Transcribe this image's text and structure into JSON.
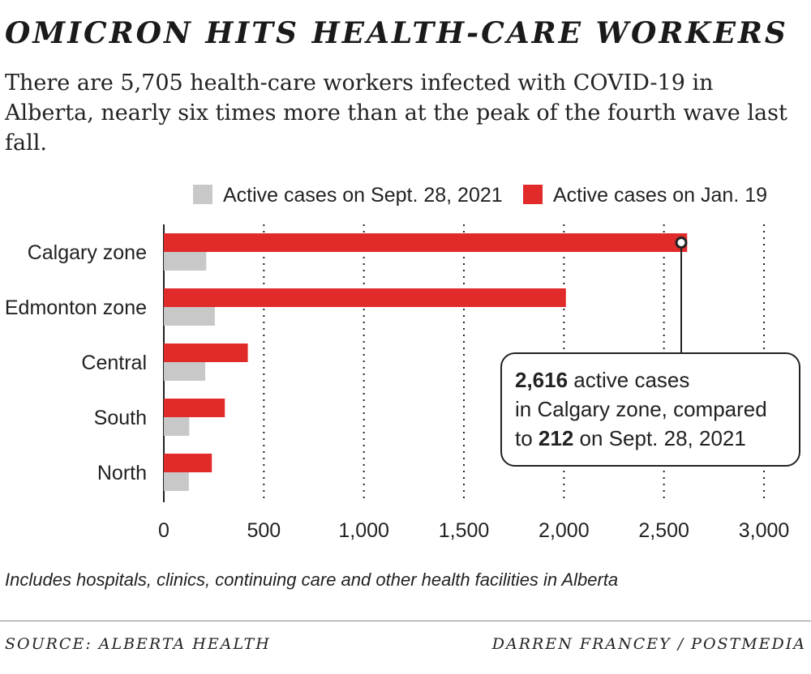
{
  "title": "OMICRON HITS HEALTH-CARE WORKERS",
  "subtitle": "There are 5,705 health-care workers infected with COVID-19 in Alberta, nearly six times more than at the peak of the fourth wave last fall.",
  "note": "Includes hospitals, clinics, continuing care and other health facilities in Alberta",
  "source": "SOURCE: ALBERTA HEALTH",
  "credit": "DARREN FRANCEY / POSTMEDIA",
  "colors": {
    "jan": "#e12b2b",
    "sept": "#c8c8c8",
    "axis": "#222222"
  },
  "callout": {
    "value": "2,616",
    "line1_rest": " active cases",
    "line2": "in Calgary zone, compared",
    "line3_pre": "to ",
    "value2": "212",
    "line3_post": " on Sept. 28, 2021"
  },
  "chart_data": {
    "type": "bar",
    "orientation": "horizontal",
    "categories": [
      "Calgary zone",
      "Edmonton zone",
      "Central",
      "South",
      "North"
    ],
    "series": [
      {
        "name": "Active cases on Jan. 19",
        "color": "#e12b2b",
        "values": [
          2616,
          2010,
          420,
          305,
          240
        ]
      },
      {
        "name": "Active cases on Sept. 28, 2021",
        "color": "#c8c8c8",
        "values": [
          212,
          255,
          207,
          127,
          125
        ]
      }
    ],
    "xlim": [
      0,
      3000
    ],
    "xticks": [
      0,
      500,
      1000,
      1500,
      2000,
      2500,
      3000
    ],
    "xtick_labels": [
      "0",
      "500",
      "1,000",
      "1,500",
      "2,000",
      "2,500",
      "3,000"
    ],
    "grid": "vertical dotted",
    "legend_position": "top-right"
  }
}
